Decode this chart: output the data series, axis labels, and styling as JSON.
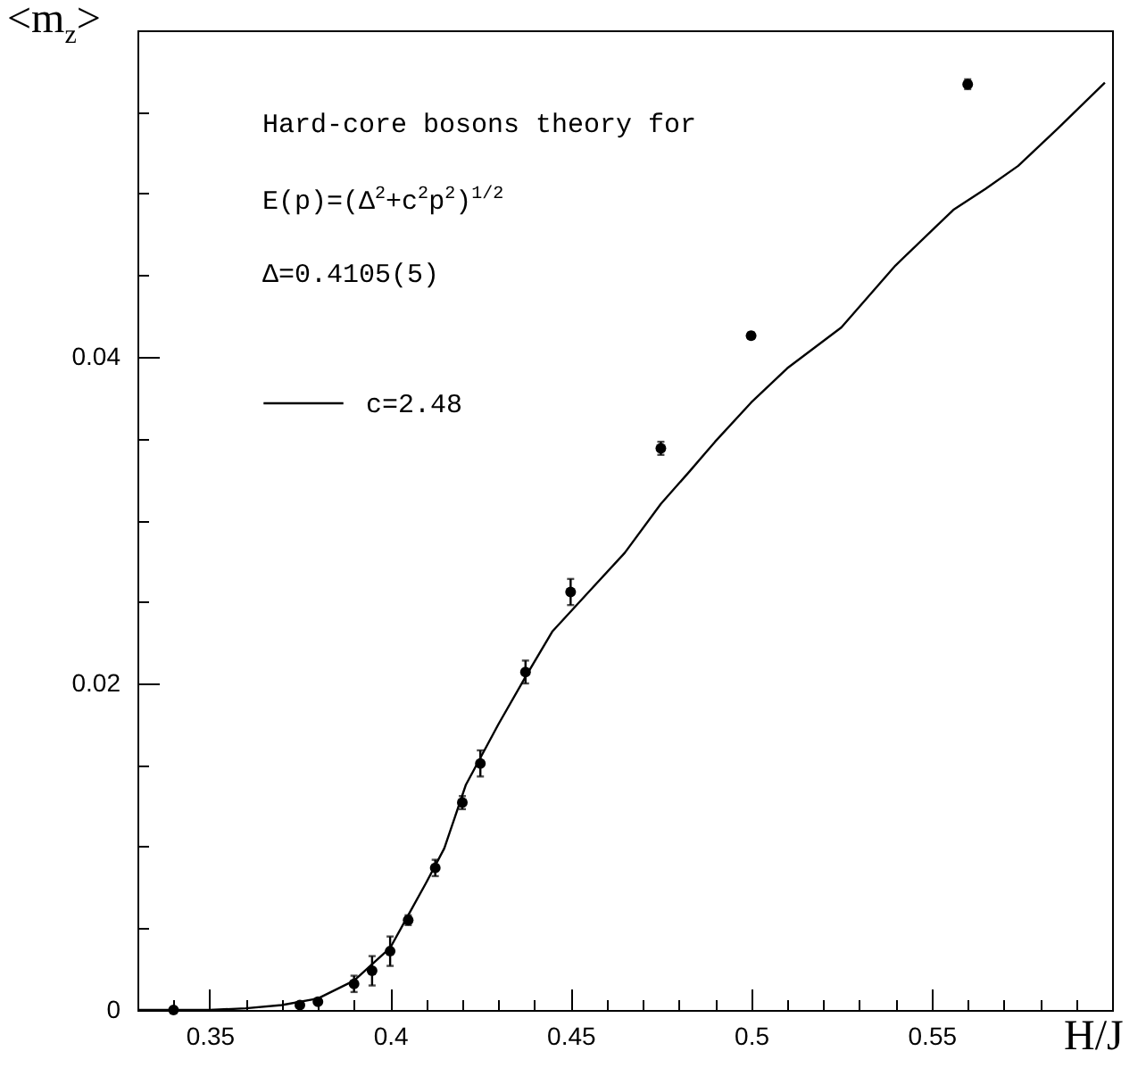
{
  "chart_data": {
    "type": "scatter",
    "xlabel": "H/J",
    "ylabel": "<m$_{z}$>",
    "annotations": [
      "Hard-core bosons theory for",
      "E(p)=(Δ$^{2}$+c$^{2}$p$^{2}$)$^{1/2}$",
      "Δ=0.4105(5)"
    ],
    "legend": "top left",
    "line_style": "solid",
    "grid": false,
    "xlim": [
      0.33,
      0.6
    ],
    "ylim": [
      0,
      0.06
    ],
    "xticks": [
      {
        "value": 0.33,
        "label": null
      },
      {
        "value": 0.34,
        "label": null
      },
      0.35,
      {
        "value": 0.36,
        "label": null
      },
      {
        "value": 0.37,
        "label": null
      },
      {
        "value": 0.38,
        "label": null
      },
      {
        "value": 0.39,
        "label": null
      },
      {
        "value": 0.4,
        "label": "0.4"
      },
      {
        "value": 0.41,
        "label": null
      },
      {
        "value": 0.42,
        "label": null
      },
      {
        "value": 0.43,
        "label": null
      },
      {
        "value": 0.44,
        "label": null
      },
      0.45,
      {
        "value": 0.46,
        "label": null
      },
      {
        "value": 0.47,
        "label": null
      },
      {
        "value": 0.48,
        "label": null
      },
      {
        "value": 0.49,
        "label": null
      },
      {
        "value": 0.5,
        "label": "0.5"
      },
      {
        "value": 0.51,
        "label": null
      },
      {
        "value": 0.52,
        "label": null
      },
      {
        "value": 0.53,
        "label": null
      },
      {
        "value": 0.54,
        "label": null
      },
      0.55,
      {
        "value": 0.56,
        "label": null
      },
      {
        "value": 0.57,
        "label": null
      },
      {
        "value": 0.58,
        "label": null
      },
      {
        "value": 0.59,
        "label": null
      },
      {
        "value": 0.6,
        "label": null
      }
    ],
    "yticks": [
      0,
      {
        "value": 0.005,
        "label": null
      },
      {
        "value": 0.01,
        "label": null
      },
      {
        "value": 0.015,
        "label": null
      },
      0.02,
      {
        "value": 0.025,
        "label": null
      },
      {
        "value": 0.03,
        "label": null
      },
      {
        "value": 0.035,
        "label": null
      },
      0.04,
      {
        "value": 0.045,
        "label": null
      },
      {
        "value": 0.05,
        "label": null
      },
      {
        "value": 0.055,
        "label": null
      },
      {
        "value": 0.06,
        "label": null
      }
    ],
    "series": [
      {
        "marker": "circle",
        "color": "#000000",
        "x": [
          0.34,
          0.375,
          0.38,
          0.39,
          0.395,
          0.4,
          0.405,
          0.4125,
          0.42,
          0.425,
          0.4375,
          0.45,
          0.475,
          0.5,
          0.56
        ],
        "values": [
          0,
          0.0003,
          0.0005,
          0.0016,
          0.0024,
          0.0036,
          0.0055,
          0.0087,
          0.0127,
          0.0151,
          0.0207,
          0.0256,
          0.0344,
          0.0413,
          0.0567
        ],
        "errors": [
          null,
          null,
          null,
          0.0005,
          0.0009,
          0.0009,
          0.0003,
          0.0005,
          0.0004,
          0.0008,
          0.0007,
          0.0008,
          0.0004,
          0.0002,
          0.0003
        ]
      },
      {
        "type": "line",
        "marker": "none",
        "name": "c=2.48",
        "color": "#000000",
        "x": [
          0.33,
          0.35,
          0.36,
          0.37,
          0.38,
          0.39,
          0.4,
          0.405,
          0.41,
          0.415,
          0.421,
          0.43,
          0.4375,
          0.445,
          0.455,
          0.465,
          0.475,
          0.483,
          0.49,
          0.5,
          0.51,
          0.525,
          0.54,
          0.556,
          0.565,
          0.574,
          0.585,
          0.598
        ],
        "values": [
          0,
          0,
          0.0001,
          0.0003,
          0.0007,
          0.0018,
          0.0038,
          0.0058,
          0.0078,
          0.0099,
          0.0138,
          0.0175,
          0.0204,
          0.0232,
          0.0256,
          0.028,
          0.031,
          0.033,
          0.0348,
          0.0372,
          0.0393,
          0.0418,
          0.0456,
          0.049,
          0.0503,
          0.0517,
          0.054,
          0.0568
        ]
      }
    ]
  }
}
